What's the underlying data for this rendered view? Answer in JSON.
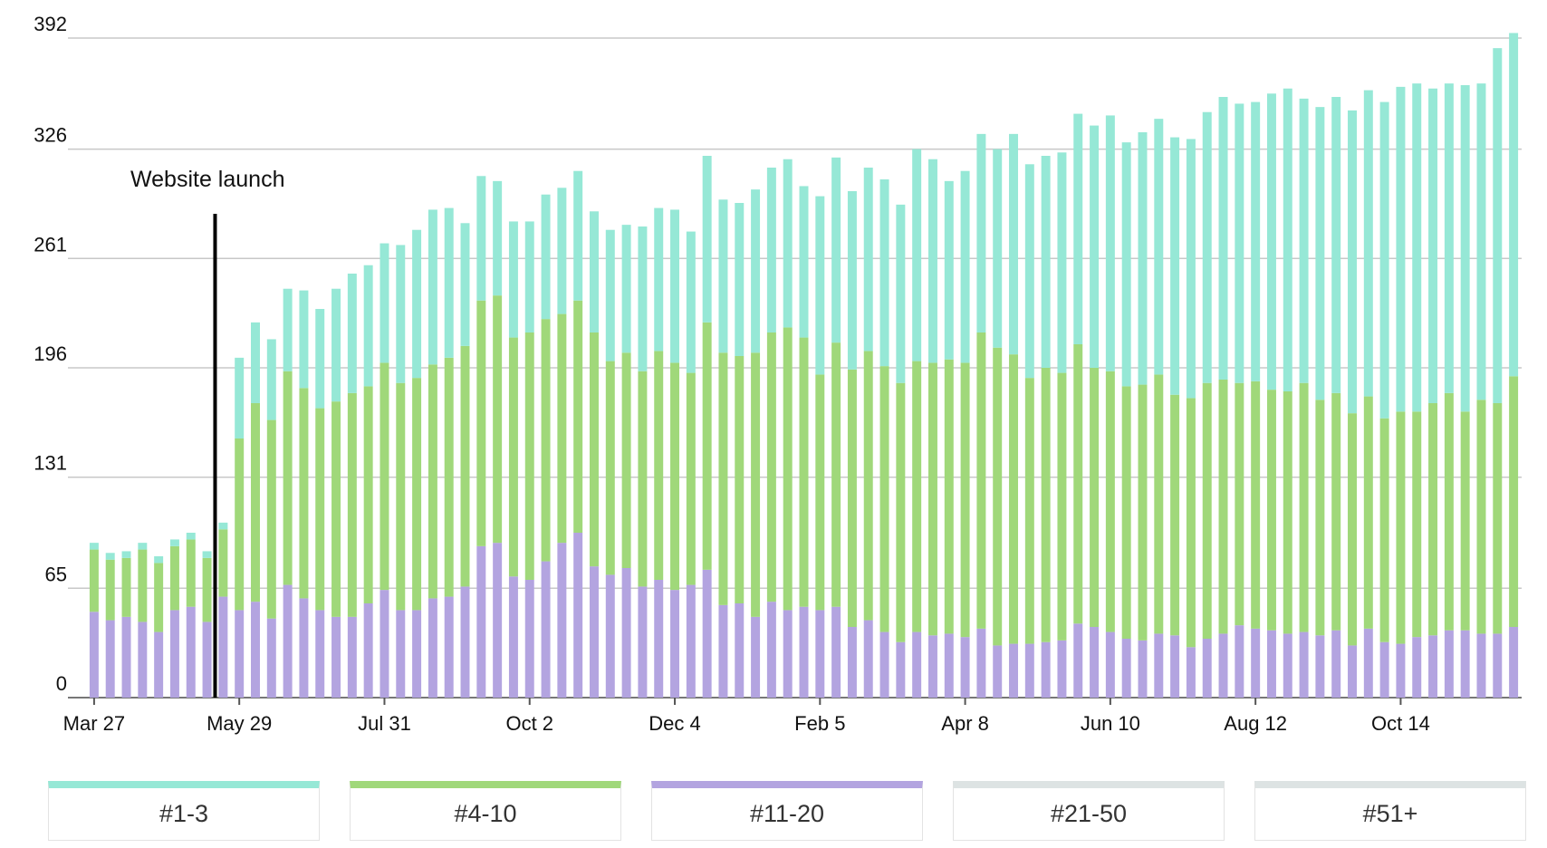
{
  "chart_data": {
    "type": "bar",
    "stacked": true,
    "y_ticks": [
      0,
      65,
      131,
      196,
      261,
      326,
      392
    ],
    "ylim": [
      0,
      392
    ],
    "x_tick_labels": [
      {
        "index": 0,
        "label": "Mar 27"
      },
      {
        "index": 9,
        "label": "May 29"
      },
      {
        "index": 18,
        "label": "Jul 31"
      },
      {
        "index": 27,
        "label": "Oct 2"
      },
      {
        "index": 36,
        "label": "Dec 4"
      },
      {
        "index": 45,
        "label": "Feb 5"
      },
      {
        "index": 54,
        "label": "Apr 8"
      },
      {
        "index": 63,
        "label": "Jun 10"
      },
      {
        "index": 72,
        "label": "Aug 12"
      },
      {
        "index": 81,
        "label": "Oct 14"
      }
    ],
    "annotation": {
      "label": "Website launch",
      "after_index": 7
    },
    "grid": true,
    "legend_position": "bottom",
    "series": [
      {
        "name": "#1-3",
        "color": "#96e8d6",
        "values": [
          4,
          4,
          4,
          4,
          4,
          4,
          4,
          4,
          4,
          48,
          48,
          48,
          49,
          58,
          59,
          67,
          71,
          72,
          71,
          82,
          88,
          92,
          89,
          73,
          74,
          68,
          69,
          66,
          74,
          75,
          77,
          72,
          78,
          76,
          86,
          85,
          91,
          84,
          99,
          91,
          91,
          97,
          98,
          100,
          90,
          106,
          110,
          106,
          109,
          111,
          106,
          126,
          121,
          106,
          114,
          118,
          118,
          131,
          127,
          126,
          131,
          137,
          144,
          152,
          145,
          150,
          152,
          153,
          154,
          161,
          168,
          166,
          166,
          176,
          180,
          169,
          174,
          176,
          180,
          182,
          188,
          193,
          195,
          187,
          184,
          194,
          188,
          211,
          204
        ],
        "label_color": "#96e8d6"
      },
      {
        "name": "#4-10",
        "color": "#a0d87a",
        "values": [
          37,
          36,
          35,
          43,
          41,
          38,
          40,
          38,
          40,
          102,
          118,
          118,
          127,
          125,
          120,
          128,
          133,
          129,
          135,
          135,
          138,
          139,
          142,
          143,
          146,
          147,
          142,
          147,
          144,
          136,
          138,
          139,
          127,
          128,
          128,
          136,
          135,
          126,
          147,
          150,
          147,
          157,
          160,
          168,
          160,
          140,
          157,
          153,
          160,
          158,
          154,
          161,
          162,
          163,
          163,
          176,
          177,
          172,
          158,
          163,
          159,
          166,
          154,
          155,
          150,
          152,
          154,
          143,
          148,
          152,
          151,
          144,
          147,
          143,
          144,
          148,
          140,
          141,
          138,
          138,
          133,
          138,
          134,
          138,
          141,
          130,
          139,
          137,
          149
        ],
        "label_color": "#a0d87a"
      },
      {
        "name": "#11-20",
        "color": "#b3a4e0",
        "values": [
          51,
          46,
          48,
          45,
          39,
          52,
          54,
          45,
          60,
          52,
          57,
          47,
          67,
          59,
          52,
          48,
          48,
          56,
          64,
          52,
          52,
          59,
          60,
          66,
          90,
          92,
          72,
          70,
          81,
          92,
          98,
          78,
          73,
          77,
          66,
          70,
          64,
          67,
          76,
          55,
          56,
          48,
          57,
          52,
          54,
          52,
          54,
          42,
          46,
          39,
          33,
          39,
          37,
          38,
          36,
          41,
          31,
          32,
          32,
          33,
          34,
          44,
          42,
          39,
          35,
          34,
          38,
          37,
          30,
          35,
          38,
          43,
          41,
          40,
          38,
          39,
          37,
          40,
          31,
          41,
          33,
          32,
          36,
          37,
          40,
          40,
          38,
          38,
          42
        ],
        "label_color": "#b3a4e0"
      }
    ],
    "extra_legend": [
      {
        "name": "#21-50",
        "color": "#dde3e3"
      },
      {
        "name": "#51+",
        "color": "#dde3e3"
      }
    ]
  },
  "legend": {
    "items": [
      "#1-3",
      "#4-10",
      "#11-20",
      "#21-50",
      "#51+"
    ],
    "colors": [
      "#96e8d6",
      "#a0d87a",
      "#b3a4e0",
      "#dde3e3",
      "#dde3e3"
    ]
  }
}
